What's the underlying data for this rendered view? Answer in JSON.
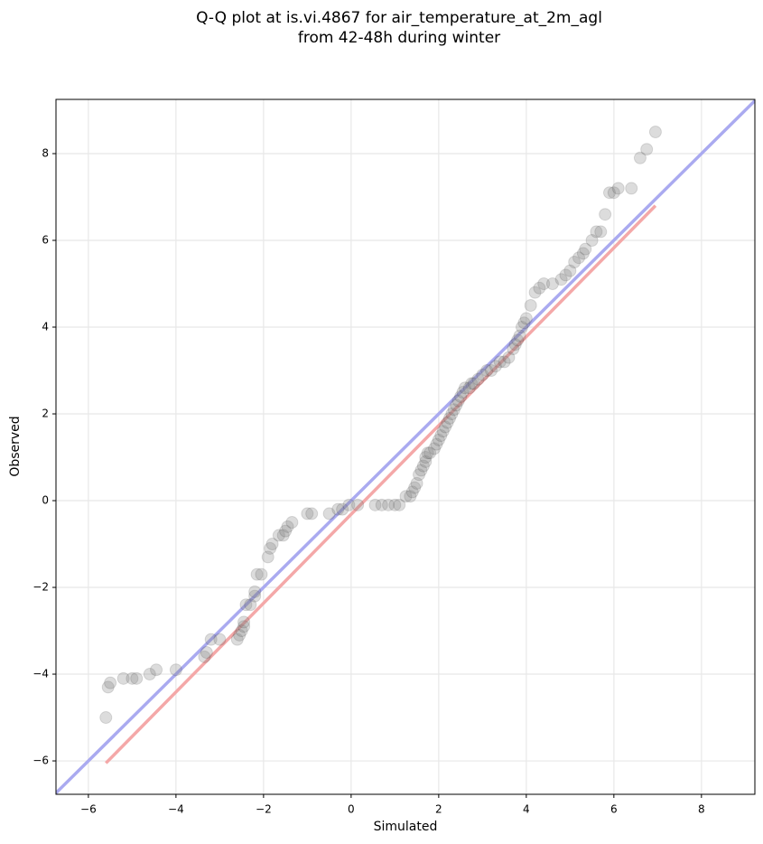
{
  "chart_data": {
    "type": "scatter",
    "title": [
      "Q-Q plot at is.vi.4867 for air_temperature_at_2m_agl",
      "from 42-48h during winter"
    ],
    "xlabel": "Simulated",
    "ylabel": "Observed",
    "xlim": [
      -6.74,
      9.22
    ],
    "ylim": [
      -6.77,
      9.25
    ],
    "xticks": [
      {
        "value": -6,
        "label": "−6"
      },
      {
        "value": -4,
        "label": "−4"
      },
      {
        "value": -2,
        "label": "−2"
      },
      0,
      2,
      4,
      6,
      8
    ],
    "yticks": [
      {
        "value": -6,
        "label": "−6"
      },
      {
        "value": -4,
        "label": "−4"
      },
      {
        "value": -2,
        "label": "−2"
      },
      0,
      2,
      4,
      6,
      8
    ],
    "grid": true,
    "series": [
      {
        "kind": "points",
        "color": "#808080",
        "x": [
          -5.6,
          -5.55,
          -5.5,
          -5.2,
          -5.0,
          -4.9,
          -4.6,
          -4.45,
          -4.0,
          -3.35,
          -3.3,
          -3.2,
          -3.0,
          -2.6,
          -2.55,
          -2.5,
          -2.45,
          -2.45,
          -2.4,
          -2.3,
          -2.2,
          -2.2,
          -2.15,
          -2.05,
          -1.9,
          -1.85,
          -1.8,
          -1.65,
          -1.55,
          -1.5,
          -1.45,
          -1.35,
          -1.0,
          -0.9,
          -0.5,
          -0.3,
          -0.2,
          -0.05,
          0.15,
          0.55,
          0.7,
          0.85,
          1.0,
          1.1,
          1.25,
          1.35,
          1.4,
          1.45,
          1.5,
          1.55,
          1.6,
          1.65,
          1.7,
          1.7,
          1.75,
          1.8,
          1.9,
          1.95,
          2.0,
          2.05,
          2.1,
          2.15,
          2.2,
          2.25,
          2.3,
          2.35,
          2.4,
          2.45,
          2.5,
          2.55,
          2.6,
          2.7,
          2.75,
          2.8,
          2.9,
          3.0,
          3.1,
          3.2,
          3.3,
          3.4,
          3.5,
          3.6,
          3.7,
          3.75,
          3.8,
          3.85,
          3.9,
          3.95,
          4.0,
          4.1,
          4.2,
          4.3,
          4.4,
          4.6,
          4.8,
          4.9,
          5.0,
          5.1,
          5.2,
          5.3,
          5.35,
          5.5,
          5.6,
          5.7,
          5.8,
          5.9,
          6.0,
          6.1,
          6.4,
          6.6,
          6.75,
          6.95
        ],
        "values": [
          -5.0,
          -4.3,
          -4.2,
          -4.1,
          -4.1,
          -4.1,
          -4.0,
          -3.9,
          -3.9,
          -3.6,
          -3.5,
          -3.2,
          -3.2,
          -3.2,
          -3.1,
          -3.0,
          -2.9,
          -2.8,
          -2.4,
          -2.4,
          -2.2,
          -2.1,
          -1.7,
          -1.7,
          -1.3,
          -1.1,
          -1.0,
          -0.8,
          -0.8,
          -0.7,
          -0.6,
          -0.5,
          -0.3,
          -0.3,
          -0.3,
          -0.2,
          -0.2,
          -0.1,
          -0.1,
          -0.1,
          -0.1,
          -0.1,
          -0.1,
          -0.1,
          0.1,
          0.1,
          0.2,
          0.3,
          0.4,
          0.6,
          0.7,
          0.8,
          0.9,
          1.0,
          1.1,
          1.1,
          1.2,
          1.3,
          1.4,
          1.5,
          1.6,
          1.7,
          1.8,
          1.9,
          2.0,
          2.1,
          2.2,
          2.3,
          2.4,
          2.5,
          2.6,
          2.6,
          2.7,
          2.7,
          2.8,
          2.9,
          3.0,
          3.0,
          3.1,
          3.2,
          3.2,
          3.3,
          3.5,
          3.6,
          3.7,
          3.8,
          4.0,
          4.1,
          4.2,
          4.5,
          4.8,
          4.9,
          5.0,
          5.0,
          5.1,
          5.2,
          5.3,
          5.5,
          5.6,
          5.7,
          5.8,
          6.0,
          6.2,
          6.2,
          6.6,
          7.1,
          7.1,
          7.2,
          7.2,
          7.9,
          8.1,
          8.5
        ]
      },
      {
        "kind": "line",
        "color": "#aaaaf0",
        "x": [
          -6.74,
          9.22
        ],
        "values": [
          -6.74,
          9.22
        ]
      },
      {
        "kind": "line",
        "color": "#f4a8a8",
        "x": [
          -5.6,
          6.95
        ],
        "values": [
          -6.05,
          6.8
        ]
      }
    ]
  }
}
